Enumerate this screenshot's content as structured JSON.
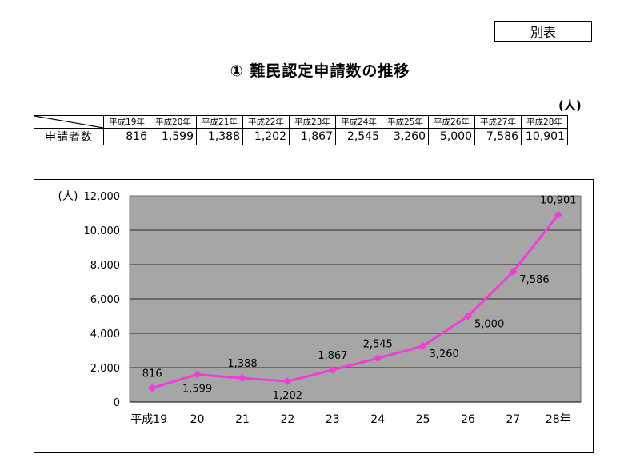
{
  "appendix_label": "別表",
  "title": "① 難民認定申請数の推移",
  "table": {
    "unit": "(人)",
    "headers": [
      "平成19年",
      "平成20年",
      "平成21年",
      "平成22年",
      "平成23年",
      "平成24年",
      "平成25年",
      "平成26年",
      "平成27年",
      "平成28年"
    ],
    "row_label": "申請者数",
    "values": [
      "816",
      "1,599",
      "1,388",
      "1,202",
      "1,867",
      "2,545",
      "3,260",
      "5,000",
      "7,586",
      "10,901"
    ]
  },
  "chart_data": {
    "type": "line",
    "ylabel": "(人)",
    "ylim": [
      0,
      12000
    ],
    "y_ticks": [
      "0",
      "2,000",
      "4,000",
      "6,000",
      "8,000",
      "10,000",
      "12,000"
    ],
    "categories": [
      "平成19",
      "20",
      "21",
      "22",
      "23",
      "24",
      "25",
      "26",
      "27",
      "28年"
    ],
    "series": [
      {
        "values": [
          816,
          1599,
          1388,
          1202,
          1867,
          2545,
          3260,
          5000,
          7586,
          10901
        ],
        "labels": [
          "816",
          "1,599",
          "1,388",
          "1,202",
          "1,867",
          "2,545",
          "3,260",
          "5,000",
          "7,586",
          "10,901"
        ]
      }
    ],
    "grid": true,
    "colors": {
      "line": "#ee3ed8",
      "plot_bg": "#a6a6a6"
    }
  }
}
